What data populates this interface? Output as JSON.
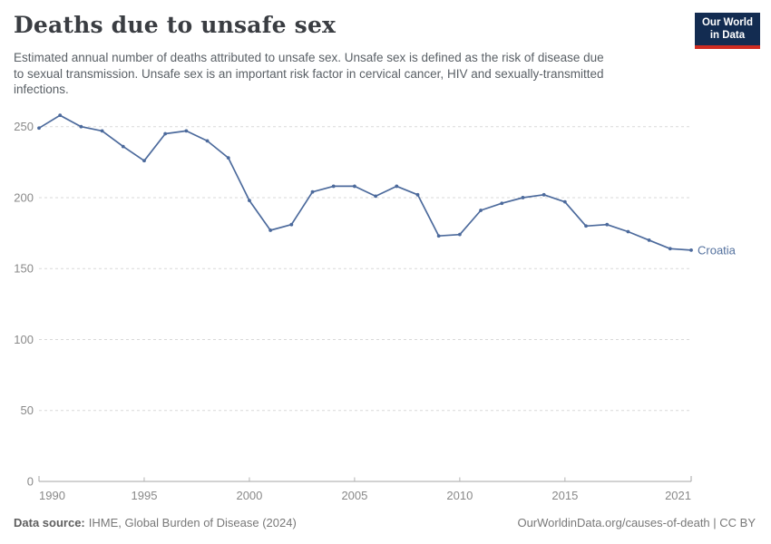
{
  "header": {
    "title": "Deaths due to unsafe sex",
    "subtitle_lines": [
      "Estimated annual number of deaths attributed to unsafe sex. Unsafe sex is defined as the risk of disease due",
      "to sexual transmission. Unsafe sex is an important risk factor in cervical cancer, HIV and sexually-transmitted",
      "infections."
    ],
    "logo": {
      "line1": "Our World",
      "line2": "in Data"
    }
  },
  "chart_data": {
    "type": "line",
    "title": "Deaths due to unsafe sex",
    "x": [
      1990,
      1991,
      1992,
      1993,
      1994,
      1995,
      1996,
      1997,
      1998,
      1999,
      2000,
      2001,
      2002,
      2003,
      2004,
      2005,
      2006,
      2007,
      2008,
      2009,
      2010,
      2011,
      2012,
      2013,
      2014,
      2015,
      2016,
      2017,
      2018,
      2019,
      2020,
      2021
    ],
    "series": [
      {
        "name": "Croatia",
        "values": [
          249,
          258,
          250,
          247,
          236,
          226,
          245,
          247,
          240,
          228,
          198,
          177,
          181,
          204,
          208,
          208,
          201,
          208,
          202,
          173,
          174,
          191,
          196,
          200,
          202,
          197,
          180,
          181,
          176,
          170,
          164,
          163
        ]
      }
    ],
    "end_label": "Croatia",
    "xticks": [
      1990,
      1995,
      2000,
      2005,
      2010,
      2015,
      2021
    ],
    "yticks": [
      0,
      50,
      100,
      150,
      200,
      250
    ],
    "ylim": [
      0,
      260
    ],
    "xlim": [
      1990,
      2021
    ],
    "xlabel": "",
    "ylabel": "",
    "grid": "horizontal-dashed",
    "legend_position": "end-of-line"
  },
  "colors": {
    "line": "#4c6a9c",
    "end_label": "#54719e",
    "axis_text": "#898989",
    "axis_line": "#a5a5a5",
    "tick_mark": "#b3b3b3",
    "gridline": "#d9d9d9"
  },
  "footer": {
    "source_label": "Data source:",
    "source_text": "IHME, Global Burden of Disease (2024)",
    "link_text": "OurWorldinData.org/causes-of-death | CC BY"
  }
}
